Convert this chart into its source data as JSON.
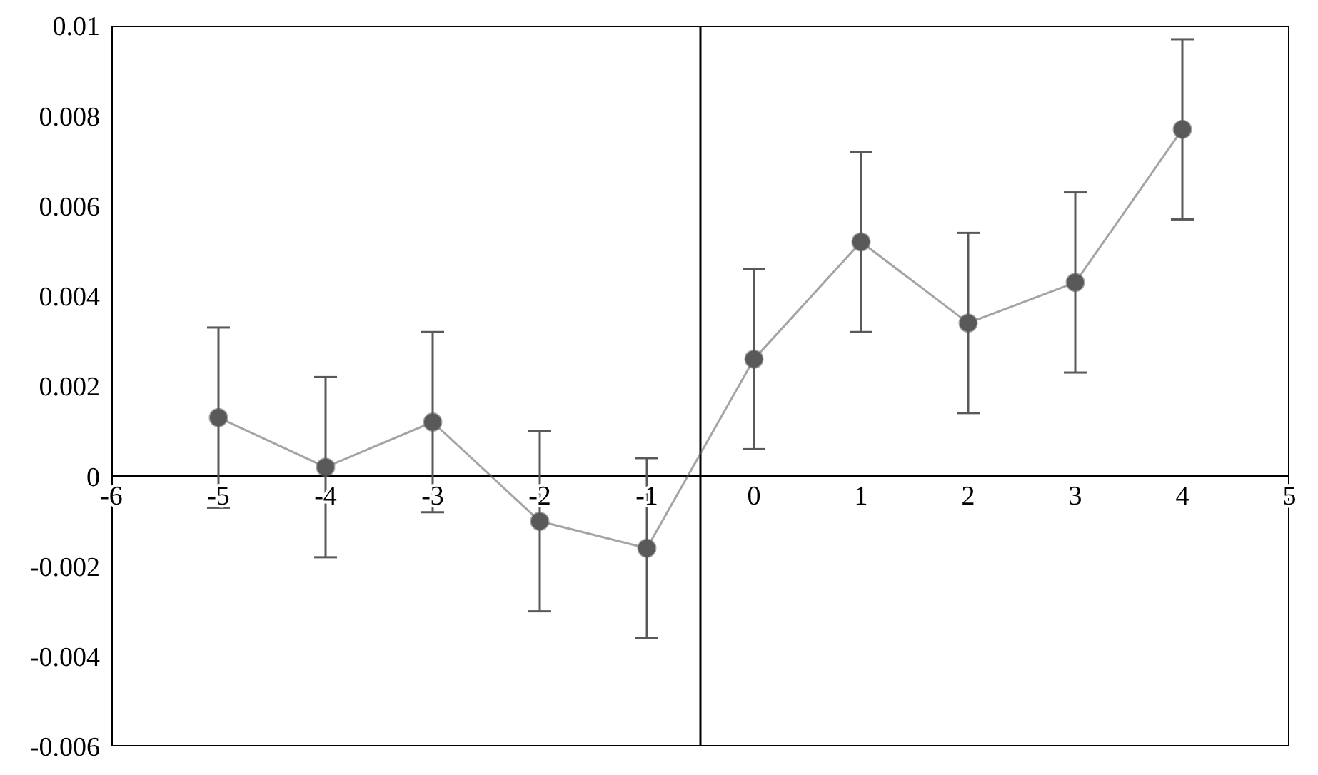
{
  "chart_data": {
    "type": "line",
    "x": [
      -5,
      -4,
      -3,
      -2,
      -1,
      0,
      1,
      2,
      3,
      4
    ],
    "series": [
      {
        "color": "#595959",
        "values": [
          0.0013,
          0.0002,
          0.0012,
          -0.001,
          -0.0016,
          0.0026,
          0.0052,
          0.0034,
          0.0043,
          0.0077
        ],
        "errors": [
          0.002,
          0.002,
          0.002,
          0.002,
          0.002,
          0.002,
          0.002,
          0.002,
          0.002,
          0.002
        ]
      }
    ],
    "xlim": [
      -6,
      5
    ],
    "xticks": [
      -6,
      -5,
      -4,
      -3,
      -2,
      -1,
      0,
      1,
      2,
      3,
      4,
      5
    ],
    "ylim": [
      -0.006,
      0.01
    ],
    "yticks": [
      -0.006,
      -0.004,
      -0.002,
      0,
      0.002,
      0.004,
      0.006,
      0.008,
      0.01
    ],
    "ref_lines": [
      {
        "axis": "x",
        "value": -0.5,
        "color": "#000000"
      }
    ],
    "marker": "circle",
    "line_style": "solid"
  }
}
